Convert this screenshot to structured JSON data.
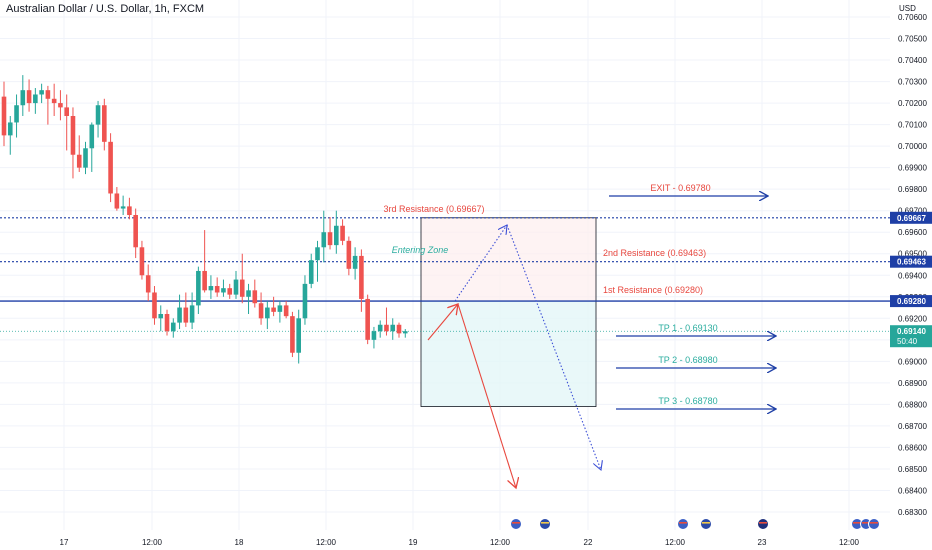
{
  "header": {
    "symbol_title": "Australian Dollar / U.S. Dollar, 1h, FXCM"
  },
  "chart_data": {
    "type": "candlestick",
    "title": "Australian Dollar / U.S. Dollar, 1h, FXCM",
    "currency_label": "USD",
    "ylim": [
      0.6828,
      0.7064
    ],
    "grid": true,
    "y_ticks": [
      "0.70600",
      "0.70500",
      "0.70400",
      "0.70300",
      "0.70200",
      "0.70100",
      "0.70000",
      "0.69900",
      "0.69800",
      "0.69700",
      "0.69600",
      "0.69500",
      "0.69400",
      "0.69300",
      "0.69200",
      "0.69100",
      "0.69000",
      "0.68900",
      "0.68800",
      "0.68700",
      "0.68600",
      "0.68500",
      "0.68400",
      "0.68300"
    ],
    "x_ticks": [
      "17",
      "12:00",
      "18",
      "12:00",
      "19",
      "12:00",
      "22",
      "12:00",
      "23",
      "12:00"
    ],
    "candles": [
      {
        "o": 0.7023,
        "h": 0.703,
        "l": 0.7,
        "c": 0.7005
      },
      {
        "o": 0.7005,
        "h": 0.7014,
        "l": 0.6996,
        "c": 0.7011
      },
      {
        "o": 0.7011,
        "h": 0.7024,
        "l": 0.7004,
        "c": 0.7019
      },
      {
        "o": 0.7019,
        "h": 0.7033,
        "l": 0.7014,
        "c": 0.7026
      },
      {
        "o": 0.7026,
        "h": 0.7031,
        "l": 0.7016,
        "c": 0.702
      },
      {
        "o": 0.702,
        "h": 0.7027,
        "l": 0.7015,
        "c": 0.7024
      },
      {
        "o": 0.7024,
        "h": 0.7029,
        "l": 0.702,
        "c": 0.7026
      },
      {
        "o": 0.7026,
        "h": 0.7028,
        "l": 0.701,
        "c": 0.7022
      },
      {
        "o": 0.7022,
        "h": 0.7029,
        "l": 0.7014,
        "c": 0.702
      },
      {
        "o": 0.702,
        "h": 0.7026,
        "l": 0.7012,
        "c": 0.7018
      },
      {
        "o": 0.7018,
        "h": 0.7024,
        "l": 0.6998,
        "c": 0.7014
      },
      {
        "o": 0.7014,
        "h": 0.7018,
        "l": 0.6985,
        "c": 0.6996
      },
      {
        "o": 0.6996,
        "h": 0.7005,
        "l": 0.6988,
        "c": 0.699
      },
      {
        "o": 0.699,
        "h": 0.7002,
        "l": 0.6987,
        "c": 0.6999
      },
      {
        "o": 0.6999,
        "h": 0.7011,
        "l": 0.6988,
        "c": 0.701
      },
      {
        "o": 0.701,
        "h": 0.7021,
        "l": 0.7004,
        "c": 0.7019
      },
      {
        "o": 0.7019,
        "h": 0.7022,
        "l": 0.6998,
        "c": 0.7002
      },
      {
        "o": 0.7002,
        "h": 0.7006,
        "l": 0.6974,
        "c": 0.6978
      },
      {
        "o": 0.6978,
        "h": 0.6981,
        "l": 0.697,
        "c": 0.6971
      },
      {
        "o": 0.6971,
        "h": 0.6977,
        "l": 0.6968,
        "c": 0.6972
      },
      {
        "o": 0.6972,
        "h": 0.6976,
        "l": 0.6966,
        "c": 0.6968
      },
      {
        "o": 0.6968,
        "h": 0.6971,
        "l": 0.6948,
        "c": 0.6953
      },
      {
        "o": 0.6953,
        "h": 0.6956,
        "l": 0.6938,
        "c": 0.694
      },
      {
        "o": 0.694,
        "h": 0.6945,
        "l": 0.6928,
        "c": 0.6932
      },
      {
        "o": 0.6932,
        "h": 0.6935,
        "l": 0.6917,
        "c": 0.692
      },
      {
        "o": 0.692,
        "h": 0.6926,
        "l": 0.6914,
        "c": 0.6922
      },
      {
        "o": 0.6922,
        "h": 0.6924,
        "l": 0.6912,
        "c": 0.6914
      },
      {
        "o": 0.6914,
        "h": 0.692,
        "l": 0.6911,
        "c": 0.6918
      },
      {
        "o": 0.6918,
        "h": 0.6931,
        "l": 0.6915,
        "c": 0.6925
      },
      {
        "o": 0.6925,
        "h": 0.6932,
        "l": 0.6916,
        "c": 0.6918
      },
      {
        "o": 0.6918,
        "h": 0.6932,
        "l": 0.6915,
        "c": 0.6926
      },
      {
        "o": 0.6926,
        "h": 0.6944,
        "l": 0.6922,
        "c": 0.6942
      },
      {
        "o": 0.6942,
        "h": 0.6961,
        "l": 0.6932,
        "c": 0.6933
      },
      {
        "o": 0.6933,
        "h": 0.694,
        "l": 0.6929,
        "c": 0.6935
      },
      {
        "o": 0.6935,
        "h": 0.6939,
        "l": 0.693,
        "c": 0.6932
      },
      {
        "o": 0.6932,
        "h": 0.6938,
        "l": 0.693,
        "c": 0.6934
      },
      {
        "o": 0.6934,
        "h": 0.6936,
        "l": 0.6929,
        "c": 0.6931
      },
      {
        "o": 0.6931,
        "h": 0.6942,
        "l": 0.6929,
        "c": 0.6938
      },
      {
        "o": 0.6938,
        "h": 0.695,
        "l": 0.6927,
        "c": 0.693
      },
      {
        "o": 0.693,
        "h": 0.6936,
        "l": 0.6922,
        "c": 0.6933
      },
      {
        "o": 0.6933,
        "h": 0.6938,
        "l": 0.6925,
        "c": 0.6927
      },
      {
        "o": 0.6927,
        "h": 0.6932,
        "l": 0.6917,
        "c": 0.692
      },
      {
        "o": 0.692,
        "h": 0.6928,
        "l": 0.6915,
        "c": 0.6925
      },
      {
        "o": 0.6925,
        "h": 0.693,
        "l": 0.6921,
        "c": 0.6923
      },
      {
        "o": 0.6923,
        "h": 0.6928,
        "l": 0.6918,
        "c": 0.6926
      },
      {
        "o": 0.6926,
        "h": 0.6928,
        "l": 0.692,
        "c": 0.6921
      },
      {
        "o": 0.6921,
        "h": 0.6923,
        "l": 0.6902,
        "c": 0.6904
      },
      {
        "o": 0.6904,
        "h": 0.6924,
        "l": 0.6899,
        "c": 0.692
      },
      {
        "o": 0.692,
        "h": 0.694,
        "l": 0.6917,
        "c": 0.6936
      },
      {
        "o": 0.6936,
        "h": 0.695,
        "l": 0.6934,
        "c": 0.6947
      },
      {
        "o": 0.6947,
        "h": 0.6956,
        "l": 0.6937,
        "c": 0.6953
      },
      {
        "o": 0.6953,
        "h": 0.697,
        "l": 0.6946,
        "c": 0.696
      },
      {
        "o": 0.696,
        "h": 0.6967,
        "l": 0.6952,
        "c": 0.6954
      },
      {
        "o": 0.6954,
        "h": 0.697,
        "l": 0.695,
        "c": 0.6963
      },
      {
        "o": 0.6963,
        "h": 0.6966,
        "l": 0.6954,
        "c": 0.6956
      },
      {
        "o": 0.6956,
        "h": 0.6958,
        "l": 0.694,
        "c": 0.6943
      },
      {
        "o": 0.6943,
        "h": 0.6953,
        "l": 0.6938,
        "c": 0.6949
      },
      {
        "o": 0.6949,
        "h": 0.6952,
        "l": 0.6923,
        "c": 0.6929
      },
      {
        "o": 0.6929,
        "h": 0.6931,
        "l": 0.6908,
        "c": 0.691
      },
      {
        "o": 0.691,
        "h": 0.6916,
        "l": 0.6906,
        "c": 0.6914
      },
      {
        "o": 0.6914,
        "h": 0.6919,
        "l": 0.6911,
        "c": 0.6917
      },
      {
        "o": 0.6917,
        "h": 0.6925,
        "l": 0.6912,
        "c": 0.6914
      },
      {
        "o": 0.6914,
        "h": 0.692,
        "l": 0.691,
        "c": 0.6917
      },
      {
        "o": 0.6917,
        "h": 0.6918,
        "l": 0.6911,
        "c": 0.6913
      },
      {
        "o": 0.6913,
        "h": 0.6915,
        "l": 0.6911,
        "c": 0.6914
      }
    ],
    "levels": [
      {
        "label": "3rd Resistance (0.69667)",
        "value": 0.69667,
        "axis_label": "0.69667",
        "style": "dotted",
        "color": "#1e3fa6"
      },
      {
        "label": "2nd Resistance (0.69463)",
        "value": 0.69463,
        "axis_label": "0.69463",
        "style": "dotted",
        "color": "#1e3fa6"
      },
      {
        "label": "1st Resistance (0.69280)",
        "value": 0.6928,
        "axis_label": "0.69280",
        "style": "solid",
        "color": "#1e3fa6"
      }
    ],
    "current_price": {
      "value": 0.6914,
      "label": "0.69140",
      "countdown": "50:40",
      "color": "#26a69a"
    },
    "zone_label": "Entering Zone",
    "zone": {
      "top": 0.69667,
      "mid": 0.6928,
      "bottom": 0.6879
    },
    "targets": [
      {
        "label": "EXIT - 0.69780",
        "value": 0.6978,
        "color": "#e8483f"
      },
      {
        "label": "TP 1 - 0.69130",
        "value": 0.6913,
        "color": "#2bad9f"
      },
      {
        "label": "TP 2 - 0.68980",
        "value": 0.6898,
        "color": "#2bad9f"
      },
      {
        "label": "TP 3 - 0.68780",
        "value": 0.6878,
        "color": "#2bad9f"
      }
    ],
    "flag_icons": [
      "us-flag-icon",
      "eu-flag-icon",
      "us-flag-icon",
      "eu-flag-icon",
      "au-flag-icon",
      "us-flag-icon",
      "us-flag-icon",
      "us-flag-icon"
    ],
    "colors": {
      "up": "#26a69a",
      "down": "#ef5350",
      "level": "#1e3fa6",
      "resistance_text": "#e8483f",
      "zone_text": "#2bad9f"
    }
  }
}
